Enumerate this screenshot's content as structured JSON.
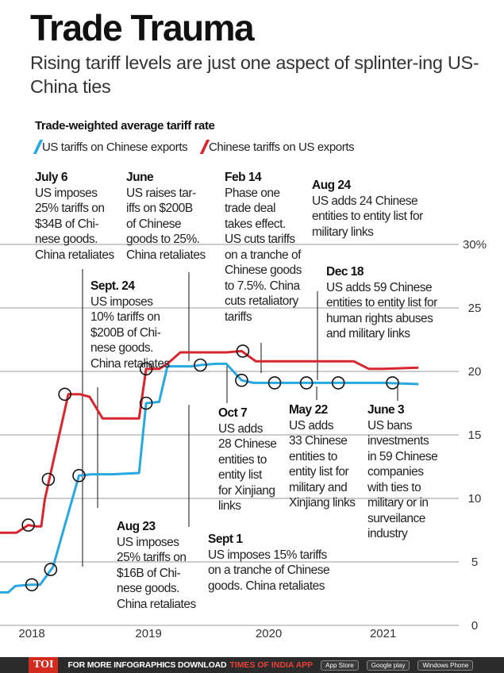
{
  "header": {
    "title": "Trade Trauma",
    "subtitle": "Rising tariff levels are just one aspect of splinter-ing US-China ties"
  },
  "chart_data": {
    "type": "line",
    "title": "Trade-weighted average tariff rate",
    "ylim": [
      0,
      30
    ],
    "yticks": [
      "30%",
      "25",
      "20",
      "15",
      "10",
      "5",
      "0"
    ],
    "xticks": [
      "2018",
      "2019",
      "2020",
      "2021"
    ],
    "x_range": [
      2017.75,
      2021.42
    ],
    "legend_placement": "top-left",
    "series": [
      {
        "name": "US tariffs on Chinese exports",
        "color": "#29a8e0",
        "x": [
          2017.75,
          2017.82,
          2017.88,
          2018.01,
          2018.09,
          2018.2,
          2018.42,
          2018.53,
          2018.61,
          2018.7,
          2018.93,
          2018.99,
          2019.1,
          2019.17,
          2019.28,
          2019.37,
          2019.45,
          2019.58,
          2019.67,
          2019.8,
          2019.9,
          2020.0,
          2020.3,
          2020.6,
          2021.0,
          2021.3
        ],
        "values": [
          2.6,
          2.6,
          3.1,
          3.2,
          3.2,
          4.6,
          11.8,
          11.9,
          11.9,
          11.9,
          12.0,
          17.5,
          17.6,
          20.4,
          20.4,
          20.4,
          20.5,
          20.6,
          20.6,
          19.3,
          19.1,
          19.1,
          19.1,
          19.1,
          19.1,
          19.0
        ]
      },
      {
        "name": "Chinese tariffs on US exports",
        "color": "#d7262e",
        "x": [
          2017.75,
          2017.89,
          2017.99,
          2018.05,
          2018.1,
          2018.13,
          2018.24,
          2018.33,
          2018.43,
          2018.51,
          2018.62,
          2018.68,
          2018.79,
          2018.93,
          2018.99,
          2019.1,
          2019.17,
          2019.28,
          2019.37,
          2019.55,
          2019.67,
          2019.8,
          2019.92,
          2020.08,
          2020.3,
          2020.5,
          2020.75,
          2020.88,
          2021.0,
          2021.3
        ],
        "values": [
          7.3,
          7.3,
          7.9,
          7.8,
          7.8,
          9.9,
          14.5,
          18.2,
          18.2,
          18.0,
          16.3,
          16.3,
          16.3,
          16.3,
          20.2,
          20.2,
          20.6,
          21.5,
          21.5,
          21.5,
          21.5,
          21.6,
          20.8,
          20.8,
          20.8,
          20.8,
          20.8,
          20.2,
          20.2,
          20.3
        ]
      }
    ],
    "markers": [
      {
        "series": 0,
        "x": 2018.42,
        "y": 11.8
      },
      {
        "series": 0,
        "x": 2018.99,
        "y": 17.5
      },
      {
        "series": 0,
        "x": 2019.45,
        "y": 20.5
      },
      {
        "series": 0,
        "x": 2019.8,
        "y": 19.3
      },
      {
        "series": 0,
        "x": 2020.08,
        "y": 19.1
      },
      {
        "series": 0,
        "x": 2020.35,
        "y": 19.1
      },
      {
        "series": 0,
        "x": 2020.62,
        "y": 19.1
      },
      {
        "series": 0,
        "x": 2021.08,
        "y": 19.1
      },
      {
        "series": 0,
        "x": 2018.02,
        "y": 3.2
      },
      {
        "series": 0,
        "x": 2018.18,
        "y": 4.4
      },
      {
        "series": 1,
        "x": 2017.99,
        "y": 7.9
      },
      {
        "series": 1,
        "x": 2018.16,
        "y": 11.5
      },
      {
        "series": 1,
        "x": 2018.3,
        "y": 18.2
      },
      {
        "series": 1,
        "x": 2018.99,
        "y": 20.2
      },
      {
        "series": 1,
        "x": 2019.81,
        "y": 21.6
      }
    ],
    "annotations": [
      {
        "date": "July 6",
        "text": "US imposes\n25% tariffs on\n$34B of Chi-\nnese goods.\nChina retaliates"
      },
      {
        "date": "June",
        "text": "US raises tar-\niffs on $200B\nof Chinese\ngoods to 25%.\nChina retaliates"
      },
      {
        "date": "Feb 14",
        "text": "Phase one\ntrade deal\ntakes effect.\nUS cuts tariffs\non a tranche of\nChinese goods\nto 7.5%. China\ncuts retaliatory\ntariffs"
      },
      {
        "date": "Aug 24",
        "text": "US adds 24 Chinese\nentities to entity list for\nmilitary links"
      },
      {
        "date": "Sept. 24",
        "text": "US imposes\n10% tariffs on\n$200B of Chi-\nnese goods.\nChina retaliates"
      },
      {
        "date": "Dec 18",
        "text": "US adds 59 Chinese\nentities to entity list for\nhuman rights abuses\nand military links"
      },
      {
        "date": "Oct 7",
        "text": "US adds\n28 Chinese\nentities to\nentity list\nfor Xinjiang\nlinks"
      },
      {
        "date": "May 22",
        "text": "US adds\n33 Chinese\nentities to\nentity list for\nmilitary and\nXinjiang links"
      },
      {
        "date": "June 3",
        "text": "US bans\ninvestments\nin 59 Chinese\ncompanies\nwith ties to\nmilitary or in\nsurveilance\nindustry"
      },
      {
        "date": "Aug 23",
        "text": "US imposes\n25% tariffs on\n$16B of Chi-\nnese goods.\nChina retaliates"
      },
      {
        "date": "Sept 1",
        "text": "US imposes 15% tariffs\non a tranche of Chinese\ngoods. China retaliates"
      }
    ]
  },
  "footer": {
    "brand": "TOI",
    "text": "FOR MORE  INFOGRAPHICS DOWNLOAD",
    "app": "TIMES OF INDIA  APP",
    "store1": "App Store",
    "store2": "Google play",
    "store3": "Windows Phone"
  }
}
